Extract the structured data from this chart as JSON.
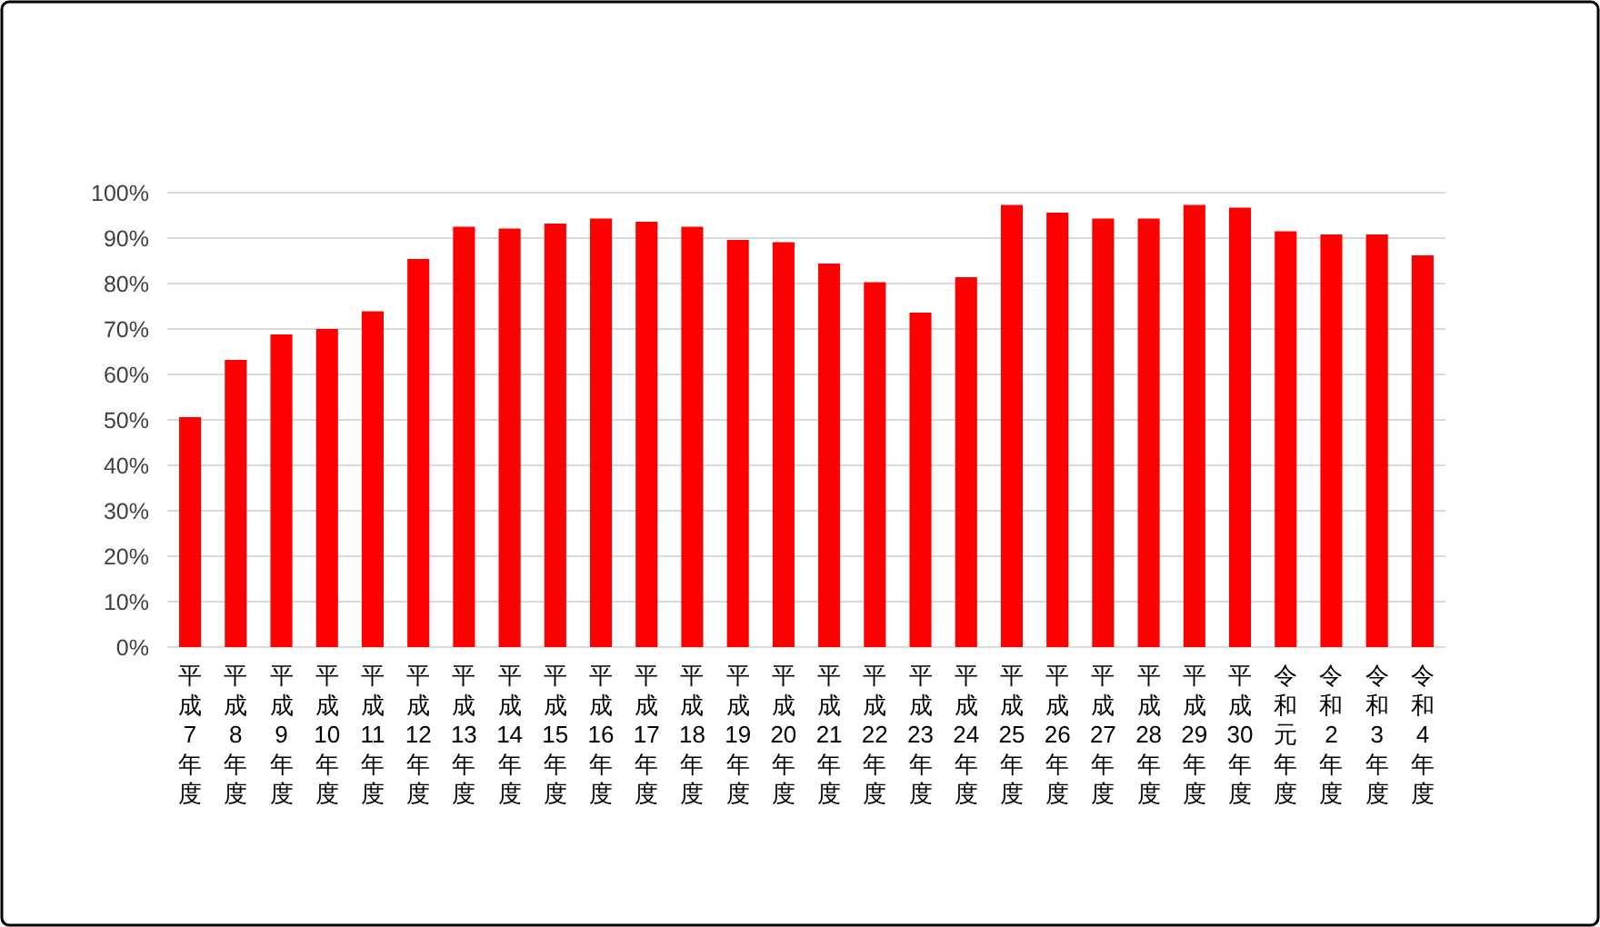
{
  "chart_data": {
    "type": "bar",
    "categories": [
      "平成7年度",
      "平成8年度",
      "平成9年度",
      "平成10年度",
      "平成11年度",
      "平成12年度",
      "平成13年度",
      "平成14年度",
      "平成15年度",
      "平成16年度",
      "平成17年度",
      "平成18年度",
      "平成19年度",
      "平成20年度",
      "平成21年度",
      "平成22年度",
      "平成23年度",
      "平成24年度",
      "平成25年度",
      "平成26年度",
      "平成27年度",
      "平成28年度",
      "平成29年度",
      "平成30年度",
      "令和元年度",
      "令和2年度",
      "令和3年度",
      "令和4年度"
    ],
    "values": [
      50.6,
      63.2,
      68.8,
      70.0,
      73.9,
      85.4,
      92.5,
      92.1,
      93.2,
      94.3,
      93.6,
      92.5,
      89.6,
      89.1,
      84.4,
      80.3,
      73.6,
      81.4,
      97.3,
      95.6,
      94.3,
      94.3,
      97.3,
      96.7,
      91.5,
      90.8,
      90.8,
      86.2
    ],
    "color": "#ff0000",
    "ylim": [
      0,
      100
    ],
    "yticks": [
      {
        "value": 0,
        "label": "0%"
      },
      {
        "value": 10,
        "label": "10%"
      },
      {
        "value": 20,
        "label": "20%"
      },
      {
        "value": 30,
        "label": "30%"
      },
      {
        "value": 40,
        "label": "40%"
      },
      {
        "value": 50,
        "label": "50%"
      },
      {
        "value": 60,
        "label": "60%"
      },
      {
        "value": 70,
        "label": "70%"
      },
      {
        "value": 80,
        "label": "80%"
      },
      {
        "value": 90,
        "label": "90%"
      },
      {
        "value": 100,
        "label": "100%"
      }
    ],
    "grid": "y"
  }
}
